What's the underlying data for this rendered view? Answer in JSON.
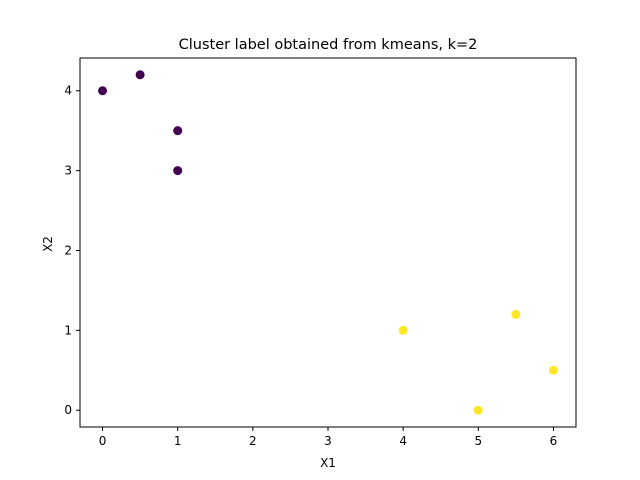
{
  "chart_data": {
    "type": "scatter",
    "title": "Cluster label obtained from kmeans, k=2",
    "xlabel": "X1",
    "ylabel": "X2",
    "xlim": [
      -0.3,
      6.3
    ],
    "ylim": [
      -0.21,
      4.41
    ],
    "xticks": [
      0,
      1,
      2,
      3,
      4,
      5,
      6
    ],
    "yticks": [
      0,
      1,
      2,
      3,
      4
    ],
    "grid": false,
    "colors": {
      "cluster_0": "#440154",
      "cluster_1": "#fde725"
    },
    "points": [
      {
        "x": 0,
        "y": 4,
        "cluster": 0
      },
      {
        "x": 0.5,
        "y": 4.2,
        "cluster": 0
      },
      {
        "x": 1,
        "y": 3.5,
        "cluster": 0
      },
      {
        "x": 1,
        "y": 3,
        "cluster": 0
      },
      {
        "x": 4,
        "y": 1,
        "cluster": 1
      },
      {
        "x": 5.5,
        "y": 1.2,
        "cluster": 1
      },
      {
        "x": 6,
        "y": 0.5,
        "cluster": 1
      },
      {
        "x": 5,
        "y": 0,
        "cluster": 1
      }
    ]
  }
}
